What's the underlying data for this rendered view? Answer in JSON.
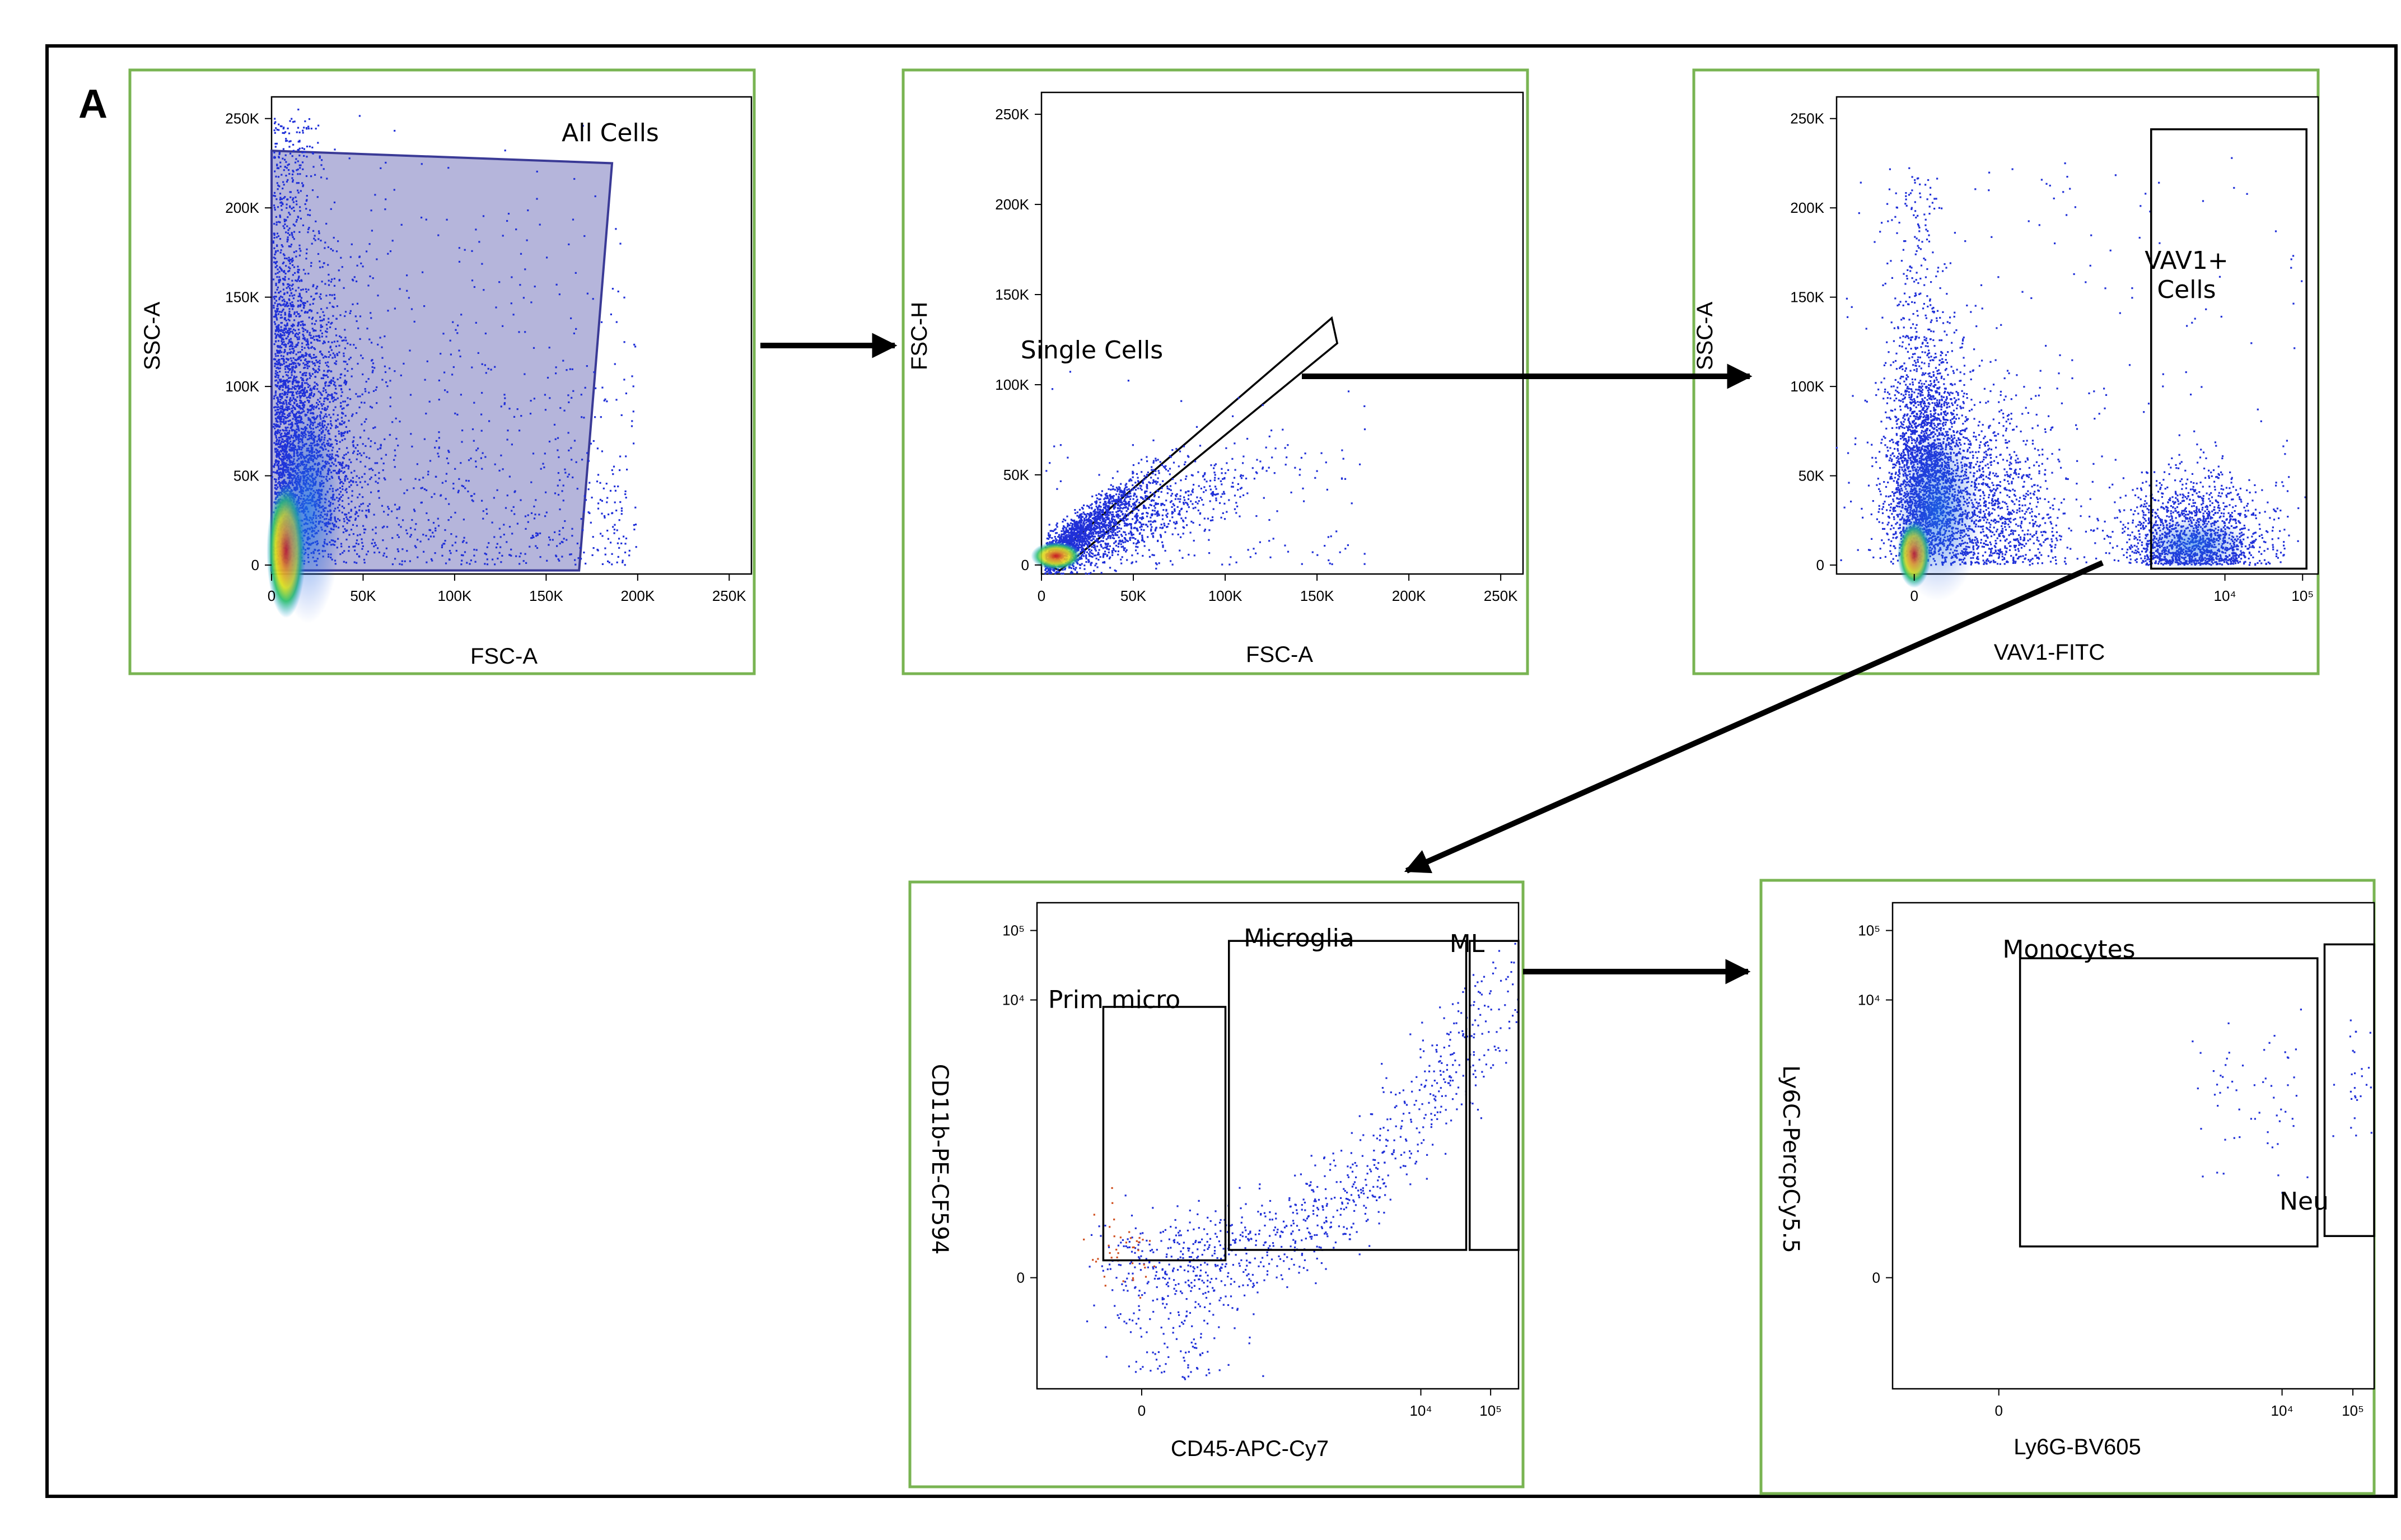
{
  "figure_label": "A",
  "colors": {
    "panel_border": "#79b452",
    "frame": "#000000",
    "dot": "#2030d8",
    "gate_fill": "#8e8ec7",
    "gate_edge": "#3a3a96"
  },
  "chart_data": [
    {
      "type": "scatter",
      "name": "fsc-ssc",
      "xlabel": "FSC-A",
      "ylabel": "SSC-A",
      "xlim": [
        0,
        262144
      ],
      "ylim": [
        -5000,
        262144
      ],
      "x_ticks": [
        0,
        50000,
        100000,
        150000,
        200000,
        250000
      ],
      "x_tick_labels": [
        "0",
        "50K",
        "100K",
        "150K",
        "200K",
        "250K"
      ],
      "y_ticks": [
        0,
        50000,
        100000,
        150000,
        200000,
        250000
      ],
      "y_tick_labels": [
        "0",
        "50K",
        "100K",
        "150K",
        "200K",
        "250K"
      ],
      "gates": [
        {
          "label": "All Cells",
          "shape": "polygon",
          "filled": true,
          "points": [
            [
              0,
              232000
            ],
            [
              186000,
              225000
            ],
            [
              168000,
              -3000
            ],
            [
              0,
              -3000
            ]
          ]
        }
      ]
    },
    {
      "type": "scatter",
      "name": "fsc-singlets",
      "xlabel": "FSC-A",
      "ylabel": "FSC-H",
      "xlim": [
        0,
        262144
      ],
      "ylim": [
        -5000,
        262144
      ],
      "x_ticks": [
        0,
        50000,
        100000,
        150000,
        200000,
        250000
      ],
      "x_tick_labels": [
        "0",
        "50K",
        "100K",
        "150K",
        "200K",
        "250K"
      ],
      "y_ticks": [
        0,
        50000,
        100000,
        150000,
        200000,
        250000
      ],
      "y_tick_labels": [
        "0",
        "50K",
        "100K",
        "150K",
        "200K",
        "250K"
      ],
      "gates": [
        {
          "label": "Single Cells",
          "shape": "polygon",
          "filled": false,
          "points": [
            [
              2000,
              500
            ],
            [
              158000,
              137000
            ],
            [
              161000,
              123000
            ],
            [
              10000,
              -3000
            ]
          ]
        }
      ]
    },
    {
      "type": "scatter",
      "name": "vav1",
      "xlabel": "VAV1-FITC",
      "ylabel": "SSC-A",
      "xlim": [
        -1,
        5.2
      ],
      "ylim": [
        -5000,
        262144
      ],
      "x_ticks": [
        0,
        4,
        5
      ],
      "x_tick_labels": [
        "0",
        "10⁴",
        "10⁵"
      ],
      "y_ticks": [
        0,
        50000,
        100000,
        150000,
        200000,
        250000
      ],
      "y_tick_labels": [
        "0",
        "50K",
        "100K",
        "150K",
        "200K",
        "250K"
      ],
      "gates": [
        {
          "label": "VAV1+ Cells",
          "label_lines": [
            "VAV1+",
            "Cells"
          ],
          "shape": "rect",
          "x": [
            3.05,
            5.05
          ],
          "y": [
            -2000,
            244000
          ]
        }
      ]
    },
    {
      "type": "scatter",
      "name": "cd45-cd11b",
      "xlabel": "CD45-APC-Cy7",
      "ylabel": "CD11b-PE-CF594",
      "xlim": [
        -1.5,
        5.4
      ],
      "ylim": [
        -1.6,
        5.4
      ],
      "x_ticks": [
        0,
        4,
        5
      ],
      "x_tick_labels": [
        "0",
        "10⁴",
        "10⁵"
      ],
      "y_ticks": [
        0,
        4,
        5
      ],
      "y_tick_labels": [
        "0",
        "10⁴",
        "10⁵"
      ],
      "gates": [
        {
          "label": "Prim micro",
          "shape": "rect",
          "x": [
            -0.55,
            1.2
          ],
          "y": [
            0.25,
            3.9
          ]
        },
        {
          "label": "Microglia",
          "shape": "rect",
          "x": [
            1.25,
            4.65
          ],
          "y": [
            0.4,
            4.85
          ]
        },
        {
          "label": "ML",
          "shape": "rect",
          "x": [
            4.7,
            5.4
          ],
          "y": [
            0.4,
            4.85
          ]
        }
      ]
    },
    {
      "type": "scatter",
      "name": "ly6g-ly6c",
      "xlabel": "Ly6G-BV605",
      "ylabel": "Ly6C-PercpCy5.5",
      "xlim": [
        -1.5,
        5.3
      ],
      "ylim": [
        -1.6,
        5.4
      ],
      "x_ticks": [
        0,
        4,
        5
      ],
      "x_tick_labels": [
        "0",
        "10⁴",
        "10⁵"
      ],
      "y_ticks": [
        0,
        4,
        5
      ],
      "y_tick_labels": [
        "0",
        "10⁴",
        "10⁵"
      ],
      "gates": [
        {
          "label": "Monocytes",
          "shape": "rect",
          "x": [
            0.3,
            4.5
          ],
          "y": [
            0.45,
            4.6
          ]
        },
        {
          "label": "Neu",
          "shape": "rect",
          "x": [
            4.6,
            5.3
          ],
          "y": [
            0.6,
            4.8
          ]
        }
      ]
    }
  ]
}
